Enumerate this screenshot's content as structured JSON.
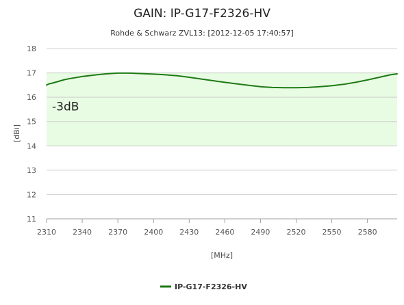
{
  "chart_data": {
    "type": "line",
    "title": "GAIN: IP-G17-F2326-HV",
    "subtitle": "Rohde & Schwarz ZVL13: [2012-12-05 17:40:57]",
    "xlabel": "[MHz]",
    "ylabel": "[dBi]",
    "xlim": [
      2310,
      2605
    ],
    "ylim": [
      11,
      18
    ],
    "x_ticks": [
      2310,
      2340,
      2370,
      2400,
      2430,
      2460,
      2490,
      2520,
      2550,
      2580
    ],
    "y_ticks": [
      11,
      12,
      13,
      14,
      15,
      16,
      17,
      18
    ],
    "grid": true,
    "legend_position": "bottom-center",
    "band": {
      "from": 14,
      "to": 17,
      "label": "-3dB",
      "color": "#e8fbe3",
      "edge_color": "#bfeab3"
    },
    "series": [
      {
        "name": "IP-G17-F2326-HV",
        "color": "#1e7a14",
        "x": [
          2310,
          2312,
          2315,
          2320,
          2325,
          2330,
          2340,
          2350,
          2360,
          2370,
          2380,
          2390,
          2400,
          2410,
          2420,
          2430,
          2440,
          2450,
          2460,
          2470,
          2480,
          2490,
          2500,
          2510,
          2520,
          2530,
          2540,
          2550,
          2560,
          2570,
          2580,
          2590,
          2600,
          2605
        ],
        "y": [
          16.5,
          16.55,
          16.58,
          16.65,
          16.72,
          16.77,
          16.85,
          16.91,
          16.96,
          16.99,
          16.99,
          16.97,
          16.95,
          16.92,
          16.88,
          16.82,
          16.75,
          16.68,
          16.61,
          16.55,
          16.49,
          16.43,
          16.4,
          16.39,
          16.39,
          16.4,
          16.43,
          16.47,
          16.53,
          16.61,
          16.71,
          16.82,
          16.93,
          16.96
        ]
      }
    ]
  }
}
